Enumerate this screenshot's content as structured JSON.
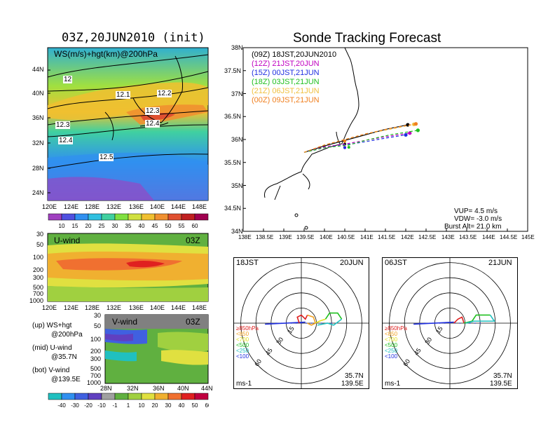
{
  "main_title": "Sonde Tracking Forecast",
  "left_title": "03Z,20JUN2010 (init)",
  "map_panel": {
    "label": "WS(m/s)+hgt(km)@200hPa",
    "lat_labels": [
      "44N",
      "40N",
      "36N",
      "32N",
      "28N",
      "24N"
    ],
    "lon_labels": [
      "120E",
      "124E",
      "128E",
      "132E",
      "136E",
      "140E",
      "144E",
      "148E"
    ],
    "contour_labels": [
      "12",
      "12.1",
      "12.2",
      "12.3",
      "12.3",
      "12.4",
      "12.4",
      "12.5"
    ]
  },
  "ws_colorbar": {
    "labels": [
      "10",
      "15",
      "20",
      "25",
      "30",
      "35",
      "40",
      "45",
      "50",
      "55",
      "60"
    ],
    "colors": [
      "#a040c0",
      "#5050e0",
      "#3090f0",
      "#30c0e0",
      "#40d0a0",
      "#80e040",
      "#d0e040",
      "#f0c030",
      "#f09030",
      "#e05030",
      "#c02020",
      "#a00050"
    ]
  },
  "u_panel": {
    "label": "U-wind",
    "time": "03Z",
    "p_labels": [
      "30",
      "50",
      "100",
      "200",
      "300",
      "500",
      "700",
      "1000"
    ],
    "lon_labels": [
      "120E",
      "124E",
      "128E",
      "132E",
      "136E",
      "140E",
      "144E",
      "148E"
    ]
  },
  "v_panel": {
    "label": "V-wind",
    "time": "03Z",
    "p_labels": [
      "30",
      "50",
      "100",
      "200",
      "300",
      "500",
      "700",
      "1000"
    ],
    "lat_labels": [
      "28N",
      "32N",
      "36N",
      "40N",
      "44N"
    ]
  },
  "legend_notes": [
    {
      "line1": "(up) WS+hgt",
      "line2": "@200hPa"
    },
    {
      "line1": "(mid) U-wind",
      "line2": "@35.7N"
    },
    {
      "line1": "(bot) V-wind",
      "line2": "@139.5E"
    }
  ],
  "uv_colorbar": {
    "labels": [
      "-40",
      "-30",
      "-20",
      "-10",
      "-1",
      "1",
      "10",
      "20",
      "30",
      "40",
      "50",
      "60"
    ],
    "colors": [
      "#20c0c0",
      "#3090f0",
      "#4060e0",
      "#6040c0",
      "#a0a0a0",
      "#60b040",
      "#a0d040",
      "#e0e040",
      "#f0b030",
      "#f07030",
      "#e02020",
      "#c00040"
    ]
  },
  "track_panel": {
    "lat_labels": [
      "38N",
      "37.5N",
      "37N",
      "36.5N",
      "36N",
      "35.5N",
      "35N",
      "34.5N",
      "34N"
    ],
    "lon_labels": [
      "138E",
      "138.5E",
      "139E",
      "139.5E",
      "140E",
      "140.5E",
      "141E",
      "141.5E",
      "142E",
      "142.5E",
      "143E",
      "143.5E",
      "144E",
      "144.5E",
      "145E"
    ],
    "params": [
      "VUP= 4.5 m/s",
      "VDW= -3.0 m/s",
      "Burst Alt= 21.0 km"
    ]
  },
  "chart_data": {
    "type": "scatter",
    "title": "Sonde Tracking Forecast",
    "xlim": [
      138,
      145
    ],
    "ylim": [
      34,
      38
    ],
    "launch": {
      "lon": 139.5,
      "lat": 35.7
    },
    "series": [
      {
        "name": "(09Z)  18JST,20JUN2010",
        "color": "#000000",
        "style": "solid",
        "x": [
          139.5,
          140.0,
          140.5,
          141.0,
          141.5,
          142.05
        ],
        "y": [
          35.72,
          35.86,
          35.98,
          36.1,
          36.22,
          36.32
        ]
      },
      {
        "name": "(12Z)  21JST,20JUN",
        "color": "#c000c0",
        "style": "dash",
        "x": [
          139.5,
          140.0,
          140.5,
          141.0,
          141.5,
          142.1
        ],
        "y": [
          35.72,
          35.84,
          35.9,
          35.98,
          36.06,
          36.14
        ]
      },
      {
        "name": "(15Z)  00JST,21JUN",
        "color": "#2030e0",
        "style": "dash",
        "x": [
          139.5,
          140.0,
          140.5,
          141.0,
          141.5,
          142.0
        ],
        "y": [
          35.72,
          35.82,
          35.88,
          35.95,
          36.03,
          36.1
        ]
      },
      {
        "name": "(18Z)  03JST,21JUN",
        "color": "#20c020",
        "style": "dash",
        "x": [
          139.5,
          140.0,
          140.6,
          141.0,
          141.6,
          142.3
        ],
        "y": [
          35.72,
          35.82,
          35.88,
          35.98,
          36.1,
          36.2
        ]
      },
      {
        "name": "(21Z)  06JST,21JUN",
        "color": "#f0c040",
        "style": "dash",
        "x": [
          139.5,
          140.0,
          140.5,
          141.0,
          141.6,
          142.2
        ],
        "y": [
          35.72,
          35.88,
          36.0,
          36.12,
          36.22,
          36.33
        ]
      },
      {
        "name": "(00Z)  09JST,21JUN",
        "color": "#f08020",
        "style": "dash",
        "x": [
          139.5,
          140.0,
          140.5,
          141.0,
          141.6,
          142.25
        ],
        "y": [
          35.72,
          35.88,
          36.0,
          36.12,
          36.24,
          36.34
        ]
      }
    ]
  },
  "hodo_left": {
    "time": "18JST",
    "date": "20JUN",
    "lat": "35.7N",
    "lon": "139.5E",
    "unit": "ms-1",
    "ring_labels": [
      "15",
      "30",
      "45",
      "60"
    ],
    "legend": [
      {
        "label": "≥850hPa",
        "color": "#e02020"
      },
      {
        "label": "<850",
        "color": "#f0a020"
      },
      {
        "label": "<700",
        "color": "#e0e020"
      },
      {
        "label": "<500",
        "color": "#20c020"
      },
      {
        "label": "<250",
        "color": "#20c0c0"
      },
      {
        "label": "<100",
        "color": "#2030e0"
      }
    ],
    "segments": [
      {
        "color": "#2030e0",
        "pts": [
          [
            -18,
            -0.5
          ],
          [
            2,
            0.5
          ]
        ]
      },
      {
        "color": "#e02020",
        "pts": [
          [
            -1,
            0
          ],
          [
            -2,
            3
          ],
          [
            0,
            4
          ],
          [
            2,
            2
          ],
          [
            3,
            4
          ]
        ]
      },
      {
        "color": "#f0a020",
        "pts": [
          [
            3,
            4
          ],
          [
            6,
            3
          ],
          [
            7,
            0
          ],
          [
            5,
            -1
          ],
          [
            3,
            0
          ]
        ]
      },
      {
        "color": "#e0e020",
        "pts": [
          [
            7,
            0
          ],
          [
            9,
            1
          ],
          [
            12,
            2
          ]
        ]
      },
      {
        "color": "#20c020",
        "pts": [
          [
            12,
            2
          ],
          [
            14,
            5
          ],
          [
            18,
            5
          ],
          [
            20,
            2
          ]
        ]
      },
      {
        "color": "#20c0c0",
        "pts": [
          [
            20,
            2
          ],
          [
            16,
            -1
          ],
          [
            13,
            0
          ],
          [
            8,
            -1
          ]
        ]
      }
    ]
  },
  "hodo_right": {
    "time": "06JST",
    "date": "21JUN",
    "lat": "35.7N",
    "lon": "139.5E",
    "unit": "ms-1",
    "ring_labels": [
      "15",
      "30",
      "45",
      "60"
    ],
    "legend": [
      {
        "label": "≥850hPa",
        "color": "#e02020"
      },
      {
        "label": "<850",
        "color": "#f0a020"
      },
      {
        "label": "<700",
        "color": "#e0e020"
      },
      {
        "label": "<500",
        "color": "#20c020"
      },
      {
        "label": "<250",
        "color": "#20c0c0"
      },
      {
        "label": "<100",
        "color": "#2030e0"
      }
    ],
    "segments": [
      {
        "color": "#2030e0",
        "pts": [
          [
            -18,
            -0.5
          ],
          [
            2,
            0.5
          ]
        ]
      },
      {
        "color": "#e02020",
        "pts": [
          [
            2,
            0
          ],
          [
            4,
            2
          ],
          [
            6,
            3
          ],
          [
            7,
            0
          ]
        ]
      },
      {
        "color": "#20c020",
        "pts": [
          [
            7,
            0
          ],
          [
            11,
            1
          ],
          [
            13,
            4
          ],
          [
            20,
            4
          ]
        ]
      },
      {
        "color": "#20c0c0",
        "pts": [
          [
            20,
            4
          ],
          [
            22,
            1
          ],
          [
            12,
            1
          ],
          [
            8,
            0
          ]
        ]
      }
    ]
  }
}
